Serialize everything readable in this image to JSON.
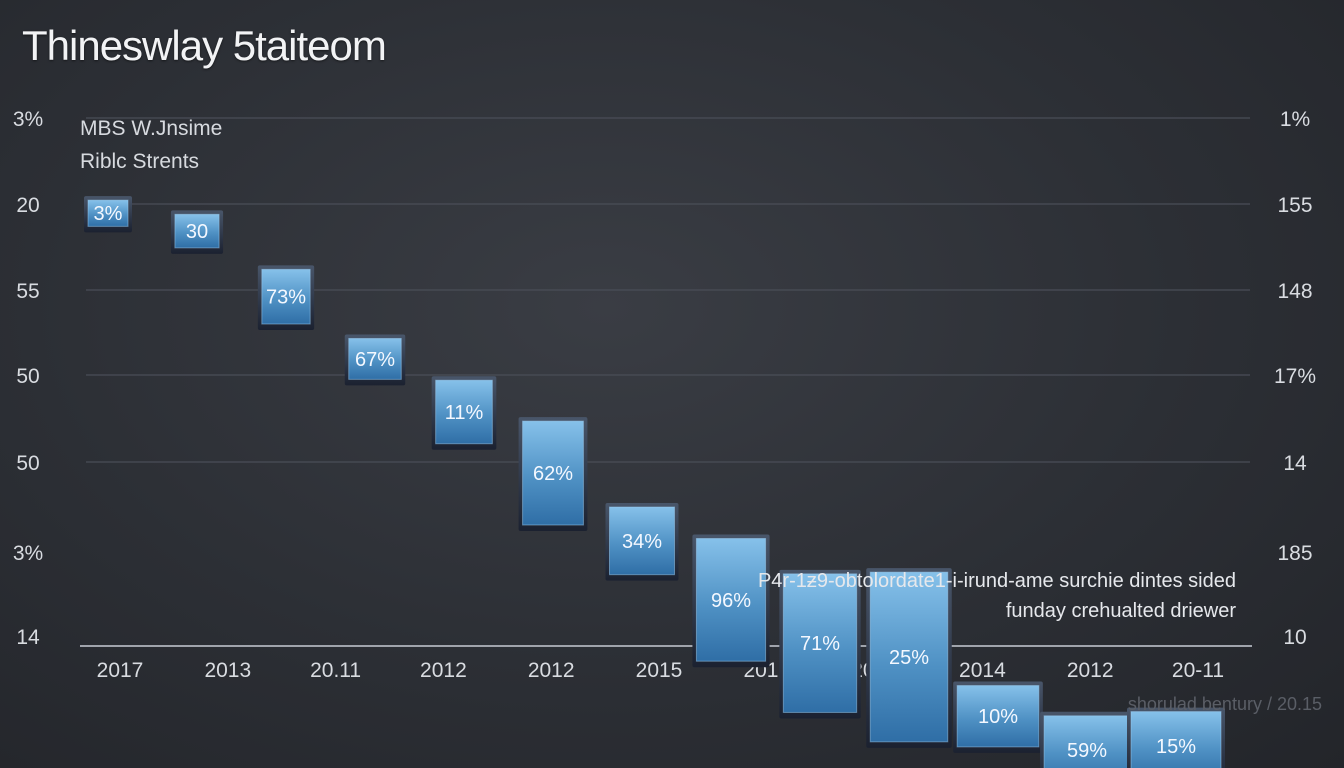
{
  "chart_data": {
    "type": "bar",
    "title": "Thineswlay 5taiteom",
    "legend": [
      "MBS W.Jnsime",
      "Riblc Strents"
    ],
    "y_ticks_left": [
      "3%",
      "20",
      "55",
      "50",
      "50",
      "3%",
      "14"
    ],
    "y_ticks_right": [
      "1%",
      "155",
      "148",
      "17%",
      "14",
      "185",
      "10"
    ],
    "categories": [
      "2017",
      "2013",
      "20.11",
      "2012",
      "2012",
      "2015",
      "2012",
      "2013",
      "2014",
      "2012",
      "20-11"
    ],
    "bars": [
      {
        "label": "3%",
        "top": 0.955,
        "bottom": 1.26
      },
      {
        "label": "30",
        "top": 1.12,
        "bottom": 1.51
      },
      {
        "label": "73%",
        "top": 1.76,
        "bottom": 2.4
      },
      {
        "label": "67%",
        "top": 2.57,
        "bottom": 3.05
      },
      {
        "label": "11%",
        "top": 3.06,
        "bottom": 3.79
      },
      {
        "label": "62%",
        "top": 3.53,
        "bottom": 4.7
      },
      {
        "label": "34%",
        "top": 4.5,
        "bottom": 5.27
      },
      {
        "label": "96%",
        "top": 4.85,
        "bottom": 6.3
      },
      {
        "label": "71%",
        "top": 5.26,
        "bottom": 6.91
      },
      {
        "label": "25%",
        "top": 5.24,
        "bottom": 7.26
      },
      {
        "label": "10%",
        "top": 6.59,
        "bottom": 7.32
      },
      {
        "label": "59%",
        "top": 6.95,
        "bottom": 7.77
      },
      {
        "label": "15%",
        "top": 6.9,
        "bottom": 7.72
      }
    ]
  },
  "note": {
    "line1": "P4r-1ƶ9-obtolordate1-i-irund-ame surchie dintes sided",
    "line2": "funday crehualted driewer"
  },
  "footer": "shorulad bentury / 20.15"
}
